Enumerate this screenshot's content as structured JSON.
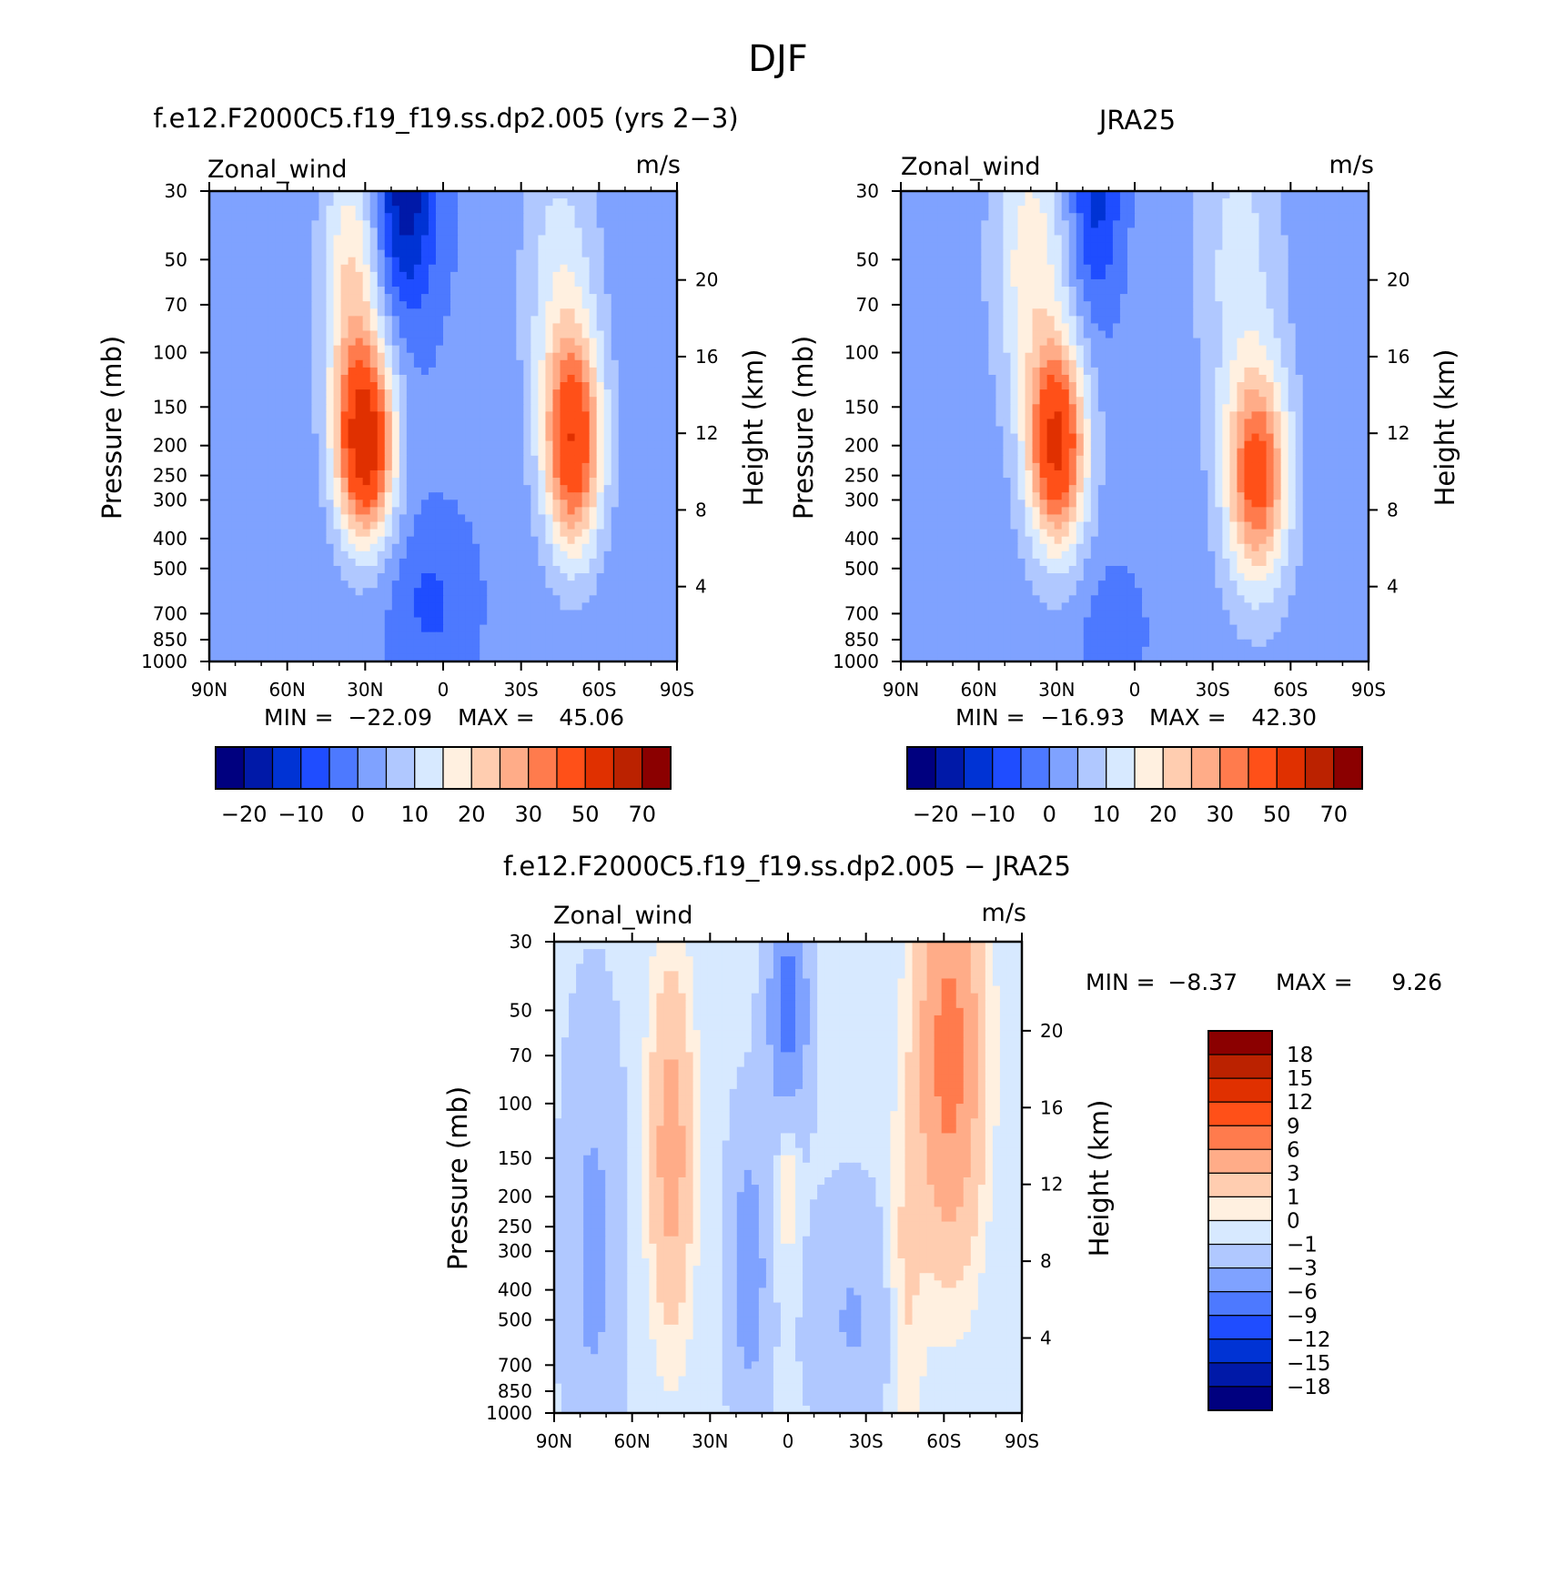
{
  "figure": {
    "title": "DJF"
  },
  "colors": {
    "p16": [
      "#00007f",
      "#0019a8",
      "#0033d4",
      "#1f4dff",
      "#4d79ff",
      "#7fa2ff",
      "#b0c8ff",
      "#d7e9ff",
      "#fff0e0",
      "#ffcdb0",
      "#ffac88",
      "#ff7b4d",
      "#ff5018",
      "#e03000",
      "#bb2200",
      "#8b0000"
    ]
  },
  "chart_data": [
    {
      "id": "model",
      "type": "heatmap",
      "title": "f.e12.F2000C5.f19_f19.ss.dp2.005 (yrs 2−3)",
      "left_string": "Zonal_wind",
      "right_string": "m/s",
      "ylabel": "Pressure (mb)",
      "right_ylabel": "Height (km)",
      "x_ticks": [
        "90N",
        "60N",
        "30N",
        "0",
        "30S",
        "60S",
        "90S"
      ],
      "x_values": [
        90,
        60,
        30,
        0,
        -30,
        -60,
        -90
      ],
      "y_ticks": [
        "30",
        "50",
        "70",
        "100",
        "150",
        "200",
        "250",
        "300",
        "400",
        "500",
        "700",
        "850",
        "1000"
      ],
      "y_values": [
        30,
        50,
        70,
        100,
        150,
        200,
        250,
        300,
        400,
        500,
        700,
        850,
        1000
      ],
      "right_y_ticks": [
        "20",
        "16",
        "12",
        "8",
        "4"
      ],
      "right_y_values": [
        20,
        16,
        12,
        8,
        4
      ],
      "xlim": [
        90,
        -90
      ],
      "ylim": [
        1000,
        30
      ],
      "y_scale": "log",
      "min_label": "MIN = ",
      "min_value": "−22.09",
      "max_label": "MAX = ",
      "max_value": "45.06",
      "levels": [
        -25,
        -20,
        -15,
        -10,
        -5,
        0,
        5,
        10,
        15,
        20,
        25,
        30,
        40,
        50,
        60,
        70
      ],
      "colorbar": {
        "orientation": "horizontal",
        "tick_labels": [
          "−20",
          "−10",
          "0",
          "10",
          "20",
          "30",
          "50",
          "70"
        ]
      },
      "features": [
        {
          "lat": 30,
          "p": 200,
          "value": 45
        },
        {
          "lat": -50,
          "p": 200,
          "value": 38
        },
        {
          "lat": 15,
          "p": 30,
          "value": -22
        },
        {
          "lat": 10,
          "p": 700,
          "value": -8
        }
      ]
    },
    {
      "id": "obs",
      "type": "heatmap",
      "title": "JRA25",
      "left_string": "Zonal_wind",
      "right_string": "m/s",
      "ylabel": "Pressure (mb)",
      "right_ylabel": "Height (km)",
      "x_ticks": [
        "90N",
        "60N",
        "30N",
        "0",
        "30S",
        "60S",
        "90S"
      ],
      "x_values": [
        90,
        60,
        30,
        0,
        -30,
        -60,
        -90
      ],
      "y_ticks": [
        "30",
        "50",
        "70",
        "100",
        "150",
        "200",
        "250",
        "300",
        "400",
        "500",
        "700",
        "850",
        "1000"
      ],
      "y_values": [
        30,
        50,
        70,
        100,
        150,
        200,
        250,
        300,
        400,
        500,
        700,
        850,
        1000
      ],
      "right_y_ticks": [
        "20",
        "16",
        "12",
        "8",
        "4"
      ],
      "right_y_values": [
        20,
        16,
        12,
        8,
        4
      ],
      "xlim": [
        90,
        -90
      ],
      "ylim": [
        1000,
        30
      ],
      "y_scale": "log",
      "min_label": "MIN = ",
      "min_value": "−16.93",
      "max_label": "MAX = ",
      "max_value": "42.30",
      "levels": [
        -25,
        -20,
        -15,
        -10,
        -5,
        0,
        5,
        10,
        15,
        20,
        25,
        30,
        40,
        50,
        60,
        70
      ],
      "colorbar": {
        "orientation": "horizontal",
        "tick_labels": [
          "−20",
          "−10",
          "0",
          "10",
          "20",
          "30",
          "50",
          "70"
        ]
      },
      "features": [
        {
          "lat": 30,
          "p": 200,
          "value": 42
        },
        {
          "lat": -48,
          "p": 250,
          "value": 35
        },
        {
          "lat": 15,
          "p": 30,
          "value": -17
        },
        {
          "lat": 8,
          "p": 800,
          "value": -6
        }
      ]
    },
    {
      "id": "diff",
      "type": "heatmap",
      "title": "f.e12.F2000C5.f19_f19.ss.dp2.005 − JRA25",
      "left_string": "Zonal_wind",
      "right_string": "m/s",
      "ylabel": "Pressure (mb)",
      "right_ylabel": "Height (km)",
      "x_ticks": [
        "90N",
        "60N",
        "30N",
        "0",
        "30S",
        "60S",
        "90S"
      ],
      "x_values": [
        90,
        60,
        30,
        0,
        -30,
        -60,
        -90
      ],
      "y_ticks": [
        "30",
        "50",
        "70",
        "100",
        "150",
        "200",
        "250",
        "300",
        "400",
        "500",
        "700",
        "850",
        "1000"
      ],
      "y_values": [
        30,
        50,
        70,
        100,
        150,
        200,
        250,
        300,
        400,
        500,
        700,
        850,
        1000
      ],
      "right_y_ticks": [
        "20",
        "16",
        "12",
        "8",
        "4"
      ],
      "right_y_values": [
        20,
        16,
        12,
        8,
        4
      ],
      "xlim": [
        90,
        -90
      ],
      "ylim": [
        1000,
        30
      ],
      "y_scale": "log",
      "min_label": "MIN = ",
      "min_value": "−8.37",
      "max_label": "MAX = ",
      "max_value": "9.26",
      "levels": [
        -18,
        -15,
        -12,
        -9,
        -6,
        -3,
        -1,
        0,
        1,
        3,
        6,
        9,
        12,
        15,
        18
      ],
      "colorbar": {
        "orientation": "vertical",
        "tick_labels": [
          "18",
          "15",
          "12",
          "9",
          "6",
          "3",
          "1",
          "0",
          "−1",
          "−3",
          "−6",
          "−9",
          "−12",
          "−15",
          "−18"
        ]
      },
      "features": [
        {
          "lat": -60,
          "p": 50,
          "value": 9
        },
        {
          "lat": 0,
          "p": 50,
          "value": -8
        },
        {
          "lat": 45,
          "p": 150,
          "value": 5
        }
      ]
    }
  ]
}
